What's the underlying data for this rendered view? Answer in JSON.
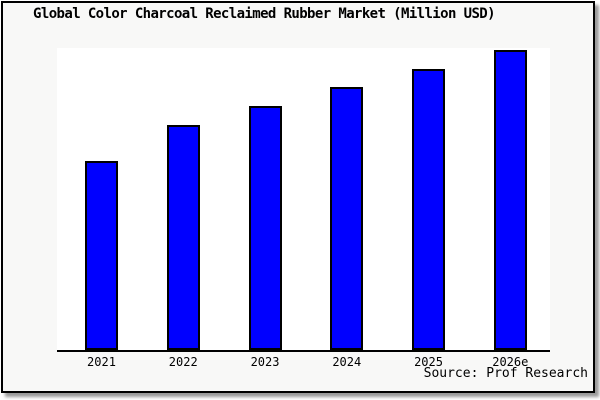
{
  "frame": {
    "background": "#f8f8f7",
    "border_color": "#000000",
    "shadow_color": "#9a9a9a",
    "plot_background": "#ffffff",
    "axis_color": "#000000"
  },
  "chart_data": {
    "type": "bar",
    "title": "Global Color Charcoal Reclaimed Rubber Market (Million USD)",
    "categories": [
      "2021",
      "2022",
      "2023",
      "2024",
      "2025",
      "2026e"
    ],
    "values": [
      63,
      75,
      81.3,
      87.7,
      93.7,
      100
    ],
    "value_note": "relative scale estimated from bar heights; y-axis unlabeled in source image",
    "xlabel": "",
    "ylabel": "",
    "ylim": [
      0,
      100.7
    ],
    "grid": false,
    "legend": null,
    "bar_color": "#0000ff",
    "bar_border_color": "#000000",
    "source_label": "Source: Prof Research"
  }
}
